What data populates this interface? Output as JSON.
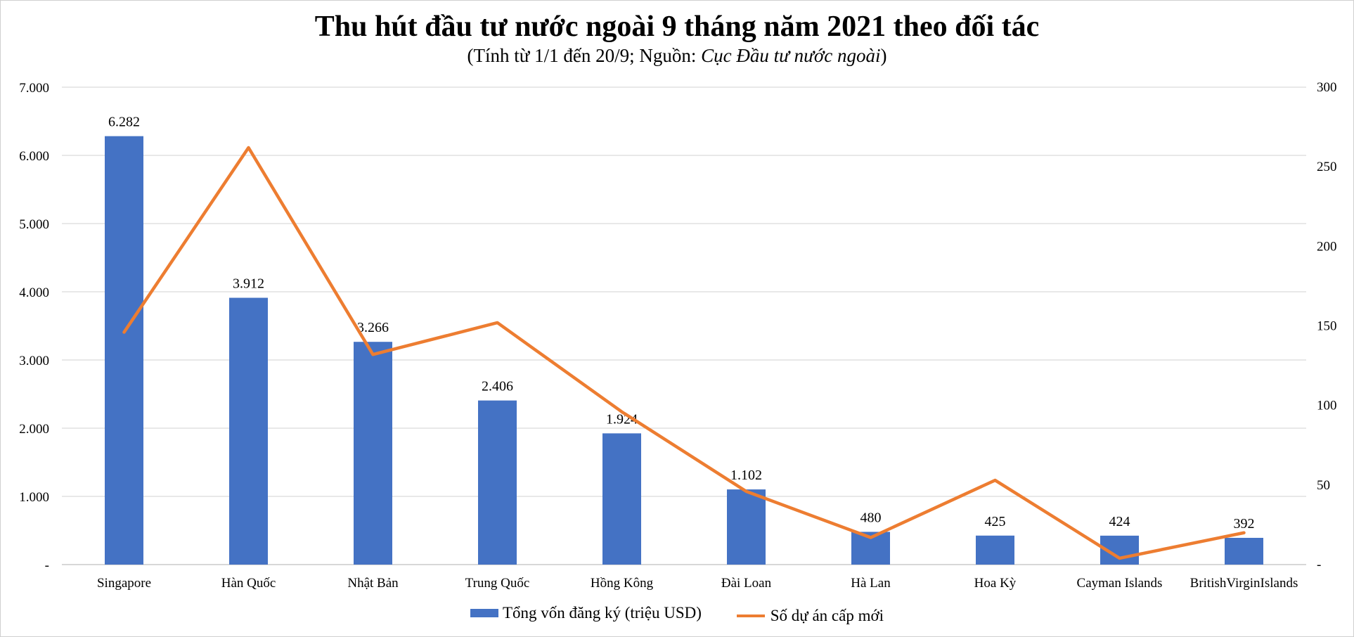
{
  "chart_data": {
    "type": "bar",
    "title": "Thu hút đầu tư nước ngoài 9 tháng năm 2021 theo đối tác",
    "subtitle_prefix": "(Tính từ 1/1 đến 20/9; Nguồn: ",
    "subtitle_source": "Cục Đầu tư nước ngoài",
    "subtitle_suffix": ")",
    "categories": [
      "Singapore",
      "Hàn Quốc",
      "Nhật Bản",
      "Trung Quốc",
      "Hồng Kông",
      "Đài Loan",
      "Hà Lan",
      "Hoa Kỳ",
      "Cayman Islands",
      "BritishVirginIslands"
    ],
    "series": [
      {
        "name": "Tổng vốn đăng ký (triệu USD)",
        "type": "bar",
        "axis": "left",
        "color": "#4472C4",
        "values": [
          6282,
          3912,
          3266,
          2406,
          1924,
          1102,
          480,
          425,
          424,
          392
        ],
        "labels": [
          "6.282",
          "3.912",
          "3.266",
          "2.406",
          "1.924",
          "1.102",
          "480",
          "425",
          "424",
          "392"
        ]
      },
      {
        "name": "Số dự án cấp mới",
        "type": "line",
        "axis": "right",
        "color": "#ED7D31",
        "values": [
          146,
          262,
          132,
          152,
          96,
          46,
          17,
          53,
          4,
          20
        ]
      }
    ],
    "y_left": {
      "min": 0,
      "max": 7000,
      "ticks": [
        "-",
        "1.000",
        "2.000",
        "3.000",
        "4.000",
        "5.000",
        "6.000",
        "7.000"
      ]
    },
    "y_right": {
      "min": 0,
      "max": 300,
      "ticks": [
        "-",
        "50",
        "100",
        "150",
        "200",
        "250",
        "300"
      ]
    },
    "grid": true,
    "legend_position": "bottom"
  }
}
